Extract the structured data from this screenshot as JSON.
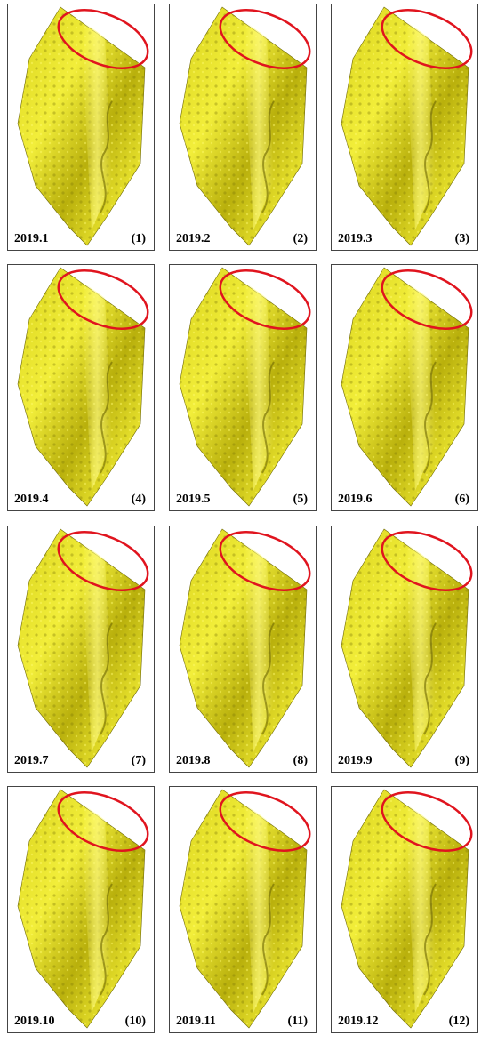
{
  "panels": [
    {
      "date": "2019.1",
      "label": "(1)"
    },
    {
      "date": "2019.2",
      "label": "(2)"
    },
    {
      "date": "2019.3",
      "label": "(3)"
    },
    {
      "date": "2019.4",
      "label": "(4)"
    },
    {
      "date": "2019.5",
      "label": "(5)"
    },
    {
      "date": "2019.6",
      "label": "(6)"
    },
    {
      "date": "2019.7",
      "label": "(7)"
    },
    {
      "date": "2019.8",
      "label": "(8)"
    },
    {
      "date": "2019.9",
      "label": "(9)"
    },
    {
      "date": "2019.10",
      "label": "(10)"
    },
    {
      "date": "2019.11",
      "label": "(11)"
    },
    {
      "date": "2019.12",
      "label": "(12)"
    }
  ]
}
